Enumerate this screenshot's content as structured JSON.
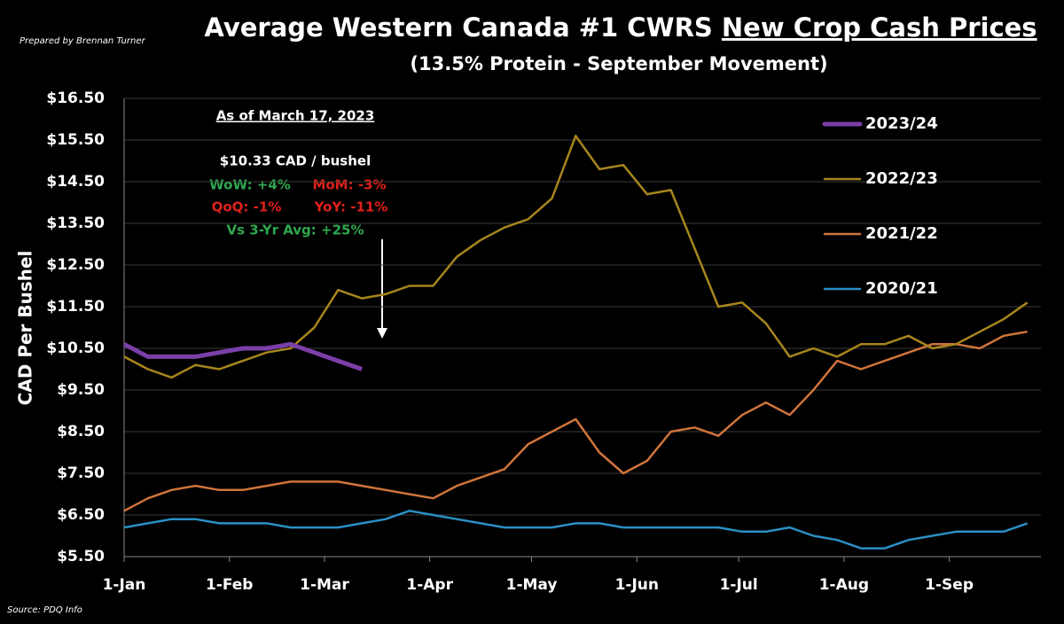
{
  "chart_data": {
    "type": "line",
    "title": "Average Western Canada #1 CWRS",
    "title_underlined": "New Crop Cash Prices",
    "subtitle": "(13.5% Protein - September Movement)",
    "credit": "Prepared by Brennan Turner",
    "source": "Source: PDQ Info",
    "y_label": "CAD Per Bushel",
    "annotation": {
      "heading": "As of March 17, 2023",
      "price": "$10.33 CAD / bushel",
      "stats": [
        {
          "text": "WoW: +4%",
          "color": "#2fa84f"
        },
        {
          "text": "MoM: -3%",
          "color": "#e0201b"
        },
        {
          "text": "QoQ: -1%",
          "color": "#e0201b"
        },
        {
          "text": "YoY: -11%",
          "color": "#e0201b"
        },
        {
          "text": "Vs 3-Yr Avg: +25%",
          "color": "#2fa84f"
        }
      ]
    },
    "x": [
      0,
      7,
      14,
      21,
      28,
      35,
      42,
      49,
      56,
      63,
      70,
      77,
      84,
      91,
      98,
      105,
      112,
      119,
      126,
      133,
      140,
      147,
      154,
      161,
      168,
      175,
      182,
      189,
      196,
      203,
      210,
      217,
      224,
      231,
      238,
      245,
      252,
      259,
      266
    ],
    "xlim": [
      0,
      270
    ],
    "xticks": [
      {
        "value": 0,
        "label": "1-Jan"
      },
      {
        "value": 31,
        "label": "1-Feb"
      },
      {
        "value": 59,
        "label": "1-Mar"
      },
      {
        "value": 90,
        "label": "1-Apr"
      },
      {
        "value": 120,
        "label": "1-May"
      },
      {
        "value": 151,
        "label": "1-Jun"
      },
      {
        "value": 181,
        "label": "1-Jul"
      },
      {
        "value": 212,
        "label": "1-Aug"
      },
      {
        "value": 243,
        "label": "1-Sep"
      }
    ],
    "ylim": [
      5.5,
      16.5
    ],
    "yticks": [
      {
        "value": 5.5,
        "label": "$5.50"
      },
      {
        "value": 6.5,
        "label": "$6.50"
      },
      {
        "value": 7.5,
        "label": "$7.50"
      },
      {
        "value": 8.5,
        "label": "$8.50"
      },
      {
        "value": 9.5,
        "label": "$9.50"
      },
      {
        "value": 10.5,
        "label": "$10.50"
      },
      {
        "value": 11.5,
        "label": "$11.50"
      },
      {
        "value": 12.5,
        "label": "$12.50"
      },
      {
        "value": 13.5,
        "label": "$13.50"
      },
      {
        "value": 14.5,
        "label": "$14.50"
      },
      {
        "value": 15.5,
        "label": "$15.50"
      },
      {
        "value": 16.5,
        "label": "$16.50"
      }
    ],
    "grid": true,
    "legend": "right",
    "series": [
      {
        "name": "2023/24",
        "color": "#7b3fa8",
        "width": 5,
        "values": [
          10.6,
          10.3,
          10.3,
          10.3,
          10.4,
          10.5,
          10.5,
          10.6,
          10.4,
          10.2,
          10.0,
          null,
          null,
          null,
          null,
          null,
          null,
          null,
          null,
          null,
          null,
          null,
          null,
          null,
          null,
          null,
          null,
          null,
          null,
          null,
          null,
          null,
          null,
          null,
          null,
          null,
          null,
          null,
          null
        ]
      },
      {
        "name": "2022/23",
        "color": "#a8861c",
        "width": 2.5,
        "values": [
          10.3,
          10.0,
          9.8,
          10.1,
          10.0,
          10.2,
          10.4,
          10.5,
          11.0,
          11.9,
          11.7,
          11.8,
          12.0,
          12.0,
          12.7,
          13.1,
          13.4,
          13.6,
          14.1,
          15.6,
          14.8,
          14.9,
          14.2,
          14.3,
          12.9,
          11.5,
          11.6,
          11.1,
          10.3,
          10.5,
          10.3,
          10.6,
          10.6,
          10.8,
          10.5,
          10.6,
          10.9,
          11.2,
          11.6
        ]
      },
      {
        "name": "2021/22",
        "color": "#d0743c",
        "width": 2.5,
        "values": [
          6.6,
          6.9,
          7.1,
          7.2,
          7.1,
          7.1,
          7.2,
          7.3,
          7.3,
          7.3,
          7.2,
          7.1,
          7.0,
          6.9,
          7.2,
          7.4,
          7.6,
          8.2,
          8.5,
          8.8,
          8.0,
          7.5,
          7.8,
          8.5,
          8.6,
          8.4,
          8.9,
          9.2,
          8.9,
          9.5,
          10.2,
          10.0,
          10.2,
          10.4,
          10.6,
          10.6,
          10.5,
          10.8,
          10.9
        ]
      },
      {
        "name": "2020/21",
        "color": "#2b8fc4",
        "width": 2.5,
        "values": [
          6.2,
          6.3,
          6.4,
          6.4,
          6.3,
          6.3,
          6.3,
          6.2,
          6.2,
          6.2,
          6.3,
          6.4,
          6.6,
          6.5,
          6.4,
          6.3,
          6.2,
          6.2,
          6.2,
          6.3,
          6.3,
          6.2,
          6.2,
          6.2,
          6.2,
          6.2,
          6.1,
          6.1,
          6.2,
          6.0,
          5.9,
          5.7,
          5.7,
          5.9,
          6.0,
          6.1,
          6.1,
          6.1,
          6.3
        ]
      }
    ]
  }
}
